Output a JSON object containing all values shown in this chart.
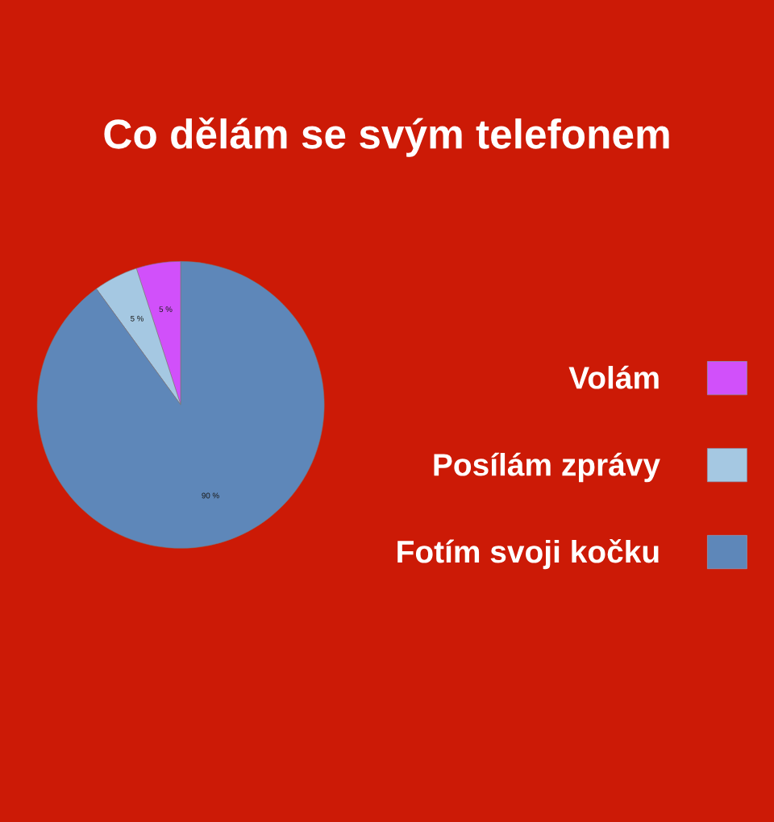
{
  "chart_data": {
    "type": "pie",
    "title": "Co dělám se svým telefonem",
    "categories": [
      "Volám",
      "Posílám zprávy",
      "Fotím svoji kočku"
    ],
    "values": [
      5,
      5,
      90
    ],
    "colors": [
      "#d150fa",
      "#a5c8e2",
      "#5e87b9"
    ],
    "value_labels": [
      "5 %",
      "5 %",
      "90 %"
    ],
    "legend": "right"
  }
}
